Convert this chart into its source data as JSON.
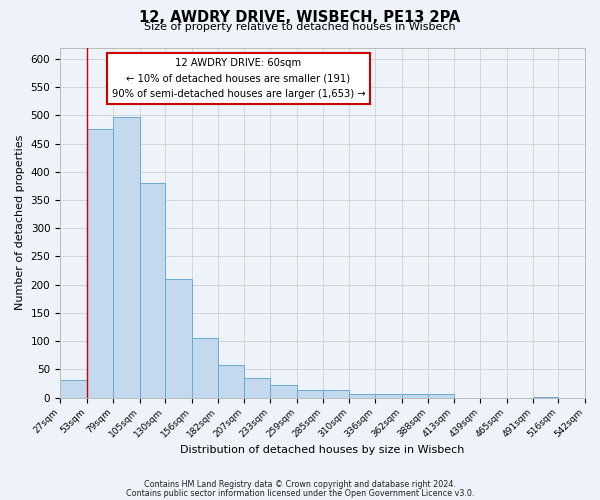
{
  "title": "12, AWDRY DRIVE, WISBECH, PE13 2PA",
  "subtitle": "Size of property relative to detached houses in Wisbech",
  "xlabel": "Distribution of detached houses by size in Wisbech",
  "ylabel": "Number of detached properties",
  "footer_line1": "Contains HM Land Registry data © Crown copyright and database right 2024.",
  "footer_line2": "Contains public sector information licensed under the Open Government Licence v3.0.",
  "bins": [
    27,
    53,
    79,
    105,
    130,
    156,
    182,
    207,
    233,
    259,
    285,
    310,
    336,
    362,
    388,
    413,
    439,
    465,
    491,
    516,
    542
  ],
  "bar_values": [
    32,
    475,
    497,
    380,
    210,
    105,
    57,
    35,
    22,
    14,
    14,
    7,
    7,
    7,
    7,
    0,
    0,
    0,
    2,
    0,
    2
  ],
  "tick_labels": [
    "27sqm",
    "53sqm",
    "79sqm",
    "105sqm",
    "130sqm",
    "156sqm",
    "182sqm",
    "207sqm",
    "233sqm",
    "259sqm",
    "285sqm",
    "310sqm",
    "336sqm",
    "362sqm",
    "388sqm",
    "413sqm",
    "439sqm",
    "465sqm",
    "491sqm",
    "516sqm",
    "542sqm"
  ],
  "ylim": [
    0,
    620
  ],
  "yticks": [
    0,
    50,
    100,
    150,
    200,
    250,
    300,
    350,
    400,
    450,
    500,
    550,
    600
  ],
  "bar_color": "#c5d9ee",
  "bar_edge_color": "#6aaad4",
  "annotation_box_color": "#ffffff",
  "annotation_box_edge_color": "#cc0000",
  "annotation_title": "12 AWDRY DRIVE: 60sqm",
  "annotation_line1": "← 10% of detached houses are smaller (191)",
  "annotation_line2": "90% of semi-detached houses are larger (1,653) →",
  "red_line_x": 53,
  "background_color": "#eef2f9"
}
